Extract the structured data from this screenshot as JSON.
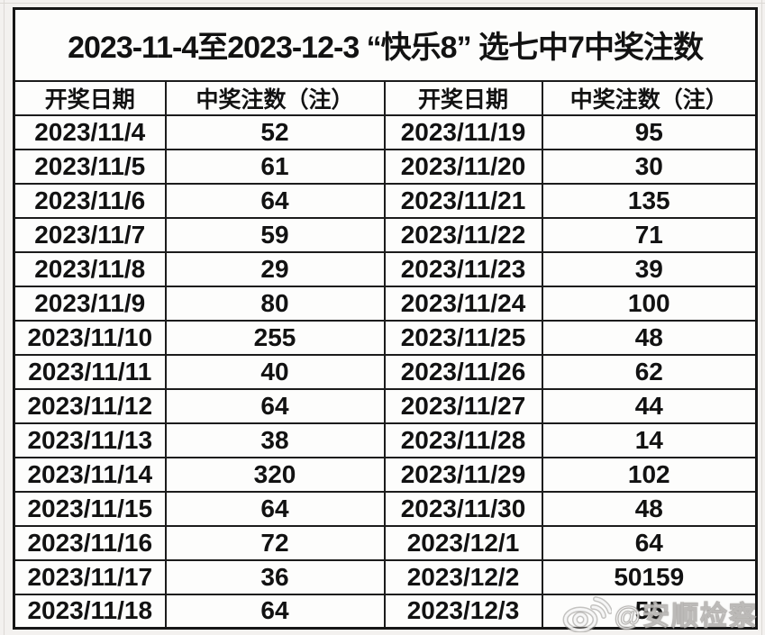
{
  "page": {
    "title": "2023-11-4至2023-12-3 “快乐8” 选七中7中奖注数"
  },
  "table": {
    "headers": [
      "开奖日期",
      "中奖注数（注）",
      "开奖日期",
      "中奖注数（注）"
    ],
    "rows": [
      {
        "date_left": "2023/11/4",
        "count_left": "52",
        "date_right": "2023/11/19",
        "count_right": "95"
      },
      {
        "date_left": "2023/11/5",
        "count_left": "61",
        "date_right": "2023/11/20",
        "count_right": "30"
      },
      {
        "date_left": "2023/11/6",
        "count_left": "64",
        "date_right": "2023/11/21",
        "count_right": "135"
      },
      {
        "date_left": "2023/11/7",
        "count_left": "59",
        "date_right": "2023/11/22",
        "count_right": "71"
      },
      {
        "date_left": "2023/11/8",
        "count_left": "29",
        "date_right": "2023/11/23",
        "count_right": "39"
      },
      {
        "date_left": "2023/11/9",
        "count_left": "80",
        "date_right": "2023/11/24",
        "count_right": "100"
      },
      {
        "date_left": "2023/11/10",
        "count_left": "255",
        "date_right": "2023/11/25",
        "count_right": "48"
      },
      {
        "date_left": "2023/11/11",
        "count_left": "40",
        "date_right": "2023/11/26",
        "count_right": "62"
      },
      {
        "date_left": "2023/11/12",
        "count_left": "64",
        "date_right": "2023/11/27",
        "count_right": "44"
      },
      {
        "date_left": "2023/11/13",
        "count_left": "38",
        "date_right": "2023/11/28",
        "count_right": "14"
      },
      {
        "date_left": "2023/11/14",
        "count_left": "320",
        "date_right": "2023/11/29",
        "count_right": "102"
      },
      {
        "date_left": "2023/11/15",
        "count_left": "64",
        "date_right": "2023/11/30",
        "count_right": "48"
      },
      {
        "date_left": "2023/11/16",
        "count_left": "72",
        "date_right": "2023/12/1",
        "count_right": "64"
      },
      {
        "date_left": "2023/11/17",
        "count_left": "36",
        "date_right": "2023/12/2",
        "count_right": "50159"
      },
      {
        "date_left": "2023/11/18",
        "count_left": "64",
        "date_right": "2023/12/3",
        "count_right": "55"
      }
    ]
  },
  "watermark": {
    "handle": "@安顺检察",
    "icon": "weibo-logo-icon"
  },
  "colors": {
    "page_bg": "#f3f1ef",
    "cell_bg": "#fdfdfc",
    "border": "#1c1c1c",
    "text": "#121212",
    "watermark": "rgba(255,255,255,0.80)"
  },
  "chart_data": {
    "type": "table",
    "title": "2023-11-4至2023-12-3 “快乐8” 选七中7中奖注数",
    "columns": [
      "开奖日期",
      "中奖注数（注）",
      "开奖日期",
      "中奖注数（注）"
    ],
    "rows": [
      [
        "2023/11/4",
        52,
        "2023/11/19",
        95
      ],
      [
        "2023/11/5",
        61,
        "2023/11/20",
        30
      ],
      [
        "2023/11/6",
        64,
        "2023/11/21",
        135
      ],
      [
        "2023/11/7",
        59,
        "2023/11/22",
        71
      ],
      [
        "2023/11/8",
        29,
        "2023/11/23",
        39
      ],
      [
        "2023/11/9",
        80,
        "2023/11/24",
        100
      ],
      [
        "2023/11/10",
        255,
        "2023/11/25",
        48
      ],
      [
        "2023/11/11",
        40,
        "2023/11/26",
        62
      ],
      [
        "2023/11/12",
        64,
        "2023/11/27",
        44
      ],
      [
        "2023/11/13",
        38,
        "2023/11/28",
        14
      ],
      [
        "2023/11/14",
        320,
        "2023/11/29",
        102
      ],
      [
        "2023/11/15",
        64,
        "2023/11/30",
        48
      ],
      [
        "2023/11/16",
        72,
        "2023/12/1",
        64
      ],
      [
        "2023/11/17",
        36,
        "2023/12/2",
        50159
      ],
      [
        "2023/11/18",
        64,
        "2023/12/3",
        55
      ]
    ]
  }
}
